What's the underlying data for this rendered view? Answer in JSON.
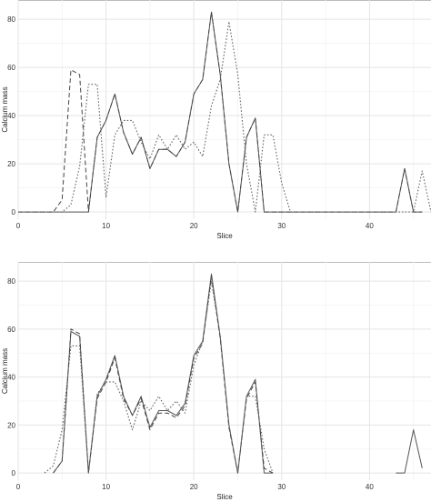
{
  "chart_data": [
    {
      "type": "line",
      "xlabel": "Slice",
      "ylabel": "Calcium mass",
      "xlim": [
        0,
        47
      ],
      "ylim": [
        -3,
        88
      ],
      "x_ticks": [
        0,
        10,
        20,
        30,
        40
      ],
      "y_ticks": [
        0,
        20,
        40,
        60,
        80
      ],
      "grid": true,
      "series": [
        {
          "style": "solid",
          "color": "#555555",
          "x": [
            0,
            4,
            5,
            6,
            7,
            8,
            9,
            10,
            11,
            12,
            13,
            14,
            15,
            16,
            17,
            18,
            19,
            20,
            21,
            22,
            23,
            24,
            25,
            26,
            27,
            28,
            29,
            30,
            35,
            40,
            43,
            44,
            45,
            46
          ],
          "y": [
            0,
            0,
            0,
            0,
            0,
            0,
            31,
            38,
            49,
            33,
            24,
            31,
            18,
            26,
            26,
            23,
            29,
            49,
            55,
            83,
            57,
            20,
            0,
            31,
            39,
            0,
            0,
            0,
            0,
            0,
            0,
            18,
            0,
            0
          ]
        },
        {
          "style": "dashed",
          "color": "#444444",
          "x": [
            0,
            4,
            5,
            6,
            7,
            8,
            9,
            10,
            11,
            12,
            13,
            14,
            15,
            16,
            17,
            18,
            19,
            20,
            21,
            22,
            23,
            24,
            25,
            26,
            27,
            28,
            29,
            30,
            35,
            40,
            43,
            44,
            45,
            46
          ],
          "y": [
            0,
            0,
            5,
            59,
            57,
            0,
            31,
            38,
            49,
            33,
            24,
            31,
            18,
            26,
            26,
            23,
            29,
            49,
            55,
            83,
            57,
            20,
            0,
            31,
            39,
            0,
            0,
            0,
            0,
            0,
            0,
            18,
            0,
            0
          ]
        },
        {
          "style": "dotted",
          "color": "#666666",
          "x": [
            0,
            5,
            6,
            7,
            8,
            9,
            10,
            11,
            12,
            13,
            14,
            15,
            16,
            17,
            18,
            19,
            20,
            21,
            22,
            23,
            24,
            25,
            26,
            27,
            28,
            29,
            30,
            31,
            35,
            40,
            45,
            46,
            47
          ],
          "y": [
            0,
            0,
            3,
            19,
            53,
            53,
            6,
            32,
            38,
            38,
            29,
            22,
            32,
            26,
            32,
            26,
            29,
            23,
            44,
            55,
            79,
            57,
            20,
            0,
            32,
            32,
            12,
            0,
            0,
            0,
            0,
            17,
            0
          ]
        }
      ]
    },
    {
      "type": "line",
      "xlabel": "Slice",
      "ylabel": "Calcium mass",
      "xlim": [
        0,
        47
      ],
      "ylim": [
        -3,
        88
      ],
      "x_ticks": [
        0,
        10,
        20,
        30,
        40
      ],
      "y_ticks": [
        0,
        20,
        40,
        60,
        80
      ],
      "grid": true,
      "series": [
        {
          "style": "solid",
          "color": "#555555",
          "x": [
            4,
            5,
            6,
            7,
            8,
            9,
            10,
            11,
            12,
            13,
            14,
            15,
            16,
            17,
            18,
            19,
            20,
            21,
            22,
            23,
            24,
            25,
            26,
            27,
            28,
            29
          ],
          "y": [
            0,
            5,
            59,
            57,
            0,
            32,
            39,
            49,
            32,
            24,
            32,
            19,
            26,
            26,
            24,
            29,
            49,
            55,
            83,
            57,
            20,
            0,
            32,
            39,
            0,
            0
          ]
        },
        {
          "style": "dashed",
          "color": "#444444",
          "x": [
            4,
            5,
            6,
            7,
            8,
            9,
            10,
            11,
            12,
            13,
            14,
            15,
            16,
            17,
            18,
            19,
            20,
            21,
            22,
            23,
            24,
            25,
            26,
            27,
            28,
            29
          ],
          "y": [
            0,
            5,
            60,
            58,
            0,
            31,
            38,
            48,
            31,
            24,
            31,
            18,
            25,
            25,
            23,
            28,
            48,
            54,
            82,
            56,
            19,
            0,
            31,
            38,
            2,
            0
          ]
        },
        {
          "style": "dotted",
          "color": "#666666",
          "x": [
            3,
            4,
            5,
            6,
            7,
            8,
            9,
            10,
            11,
            12,
            13,
            14,
            15,
            16,
            17,
            18,
            19,
            20,
            21,
            22,
            23,
            24,
            25,
            26,
            27,
            28,
            29
          ],
          "y": [
            0,
            3,
            18,
            53,
            53,
            0,
            33,
            38,
            38,
            30,
            18,
            30,
            26,
            32,
            26,
            30,
            25,
            45,
            55,
            80,
            57,
            20,
            0,
            32,
            32,
            10,
            0
          ]
        },
        {
          "style": "solid",
          "color": "#555555",
          "x": [
            43,
            44,
            45,
            46
          ],
          "y": [
            0,
            0,
            18,
            2
          ]
        }
      ]
    }
  ]
}
